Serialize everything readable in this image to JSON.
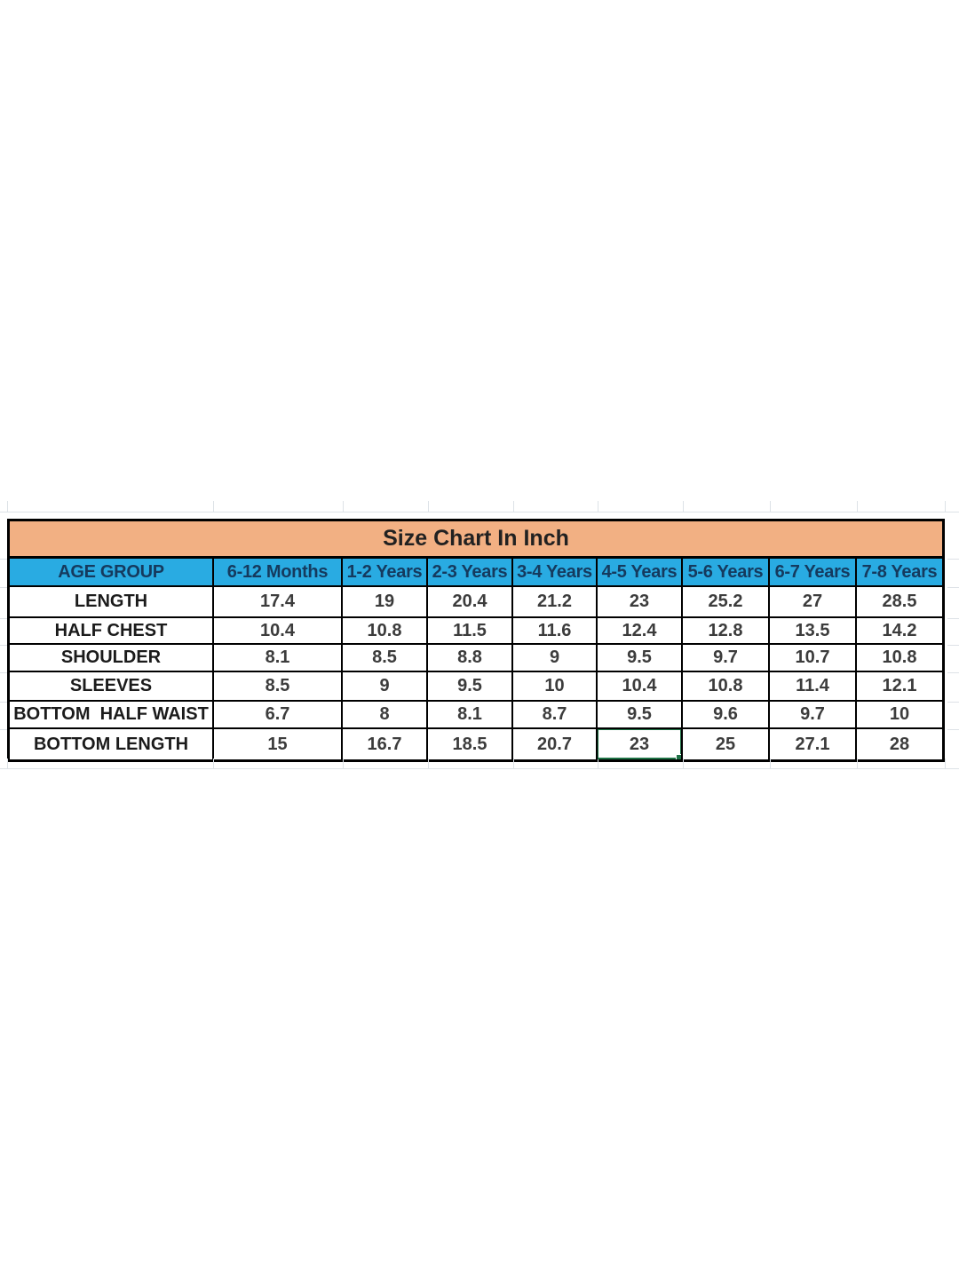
{
  "sheet": {
    "title": "Size Chart In Inch",
    "columns": [
      "AGE GROUP",
      "6-12 Months",
      "1-2 Years",
      "2-3 Years",
      "3-4 Years",
      "4-5 Years",
      "5-6 Years",
      "6-7 Years",
      "7-8 Years"
    ],
    "rows": [
      {
        "label": "LENGTH",
        "values": [
          "17.4",
          "19",
          "20.4",
          "21.2",
          "23",
          "25.2",
          "27",
          "28.5"
        ]
      },
      {
        "label": "HALF CHEST",
        "values": [
          "10.4",
          "10.8",
          "11.5",
          "11.6",
          "12.4",
          "12.8",
          "13.5",
          "14.2"
        ]
      },
      {
        "label": "SHOULDER",
        "values": [
          "8.1",
          "8.5",
          "8.8",
          "9",
          "9.5",
          "9.7",
          "10.7",
          "10.8"
        ]
      },
      {
        "label": "SLEEVES",
        "values": [
          "8.5",
          "9",
          "9.5",
          "10",
          "10.4",
          "10.8",
          "11.4",
          "12.1"
        ]
      },
      {
        "label": "BOTTOM  HALF WAIST",
        "values": [
          "6.7",
          "8",
          "8.1",
          "8.7",
          "9.5",
          "9.6",
          "9.7",
          "10"
        ]
      },
      {
        "label": "BOTTOM LENGTH",
        "values": [
          "15",
          "16.7",
          "18.5",
          "20.7",
          "23",
          "25",
          "27.1",
          "28"
        ]
      }
    ],
    "selection": {
      "row_label": "BOTTOM LENGTH",
      "column_label": "4-5 Years",
      "value": "23",
      "row_index": 5,
      "col_index": 4
    },
    "colors": {
      "title_bg": "#F2B083",
      "header_bg": "#29ABE2",
      "header_text": "#153A5E",
      "grid_border": "#000000",
      "selection_green": "#1E7145",
      "gridline": "#DDE2E7",
      "number_text": "#3C3C3C",
      "label_text": "#1B1B1B"
    }
  }
}
